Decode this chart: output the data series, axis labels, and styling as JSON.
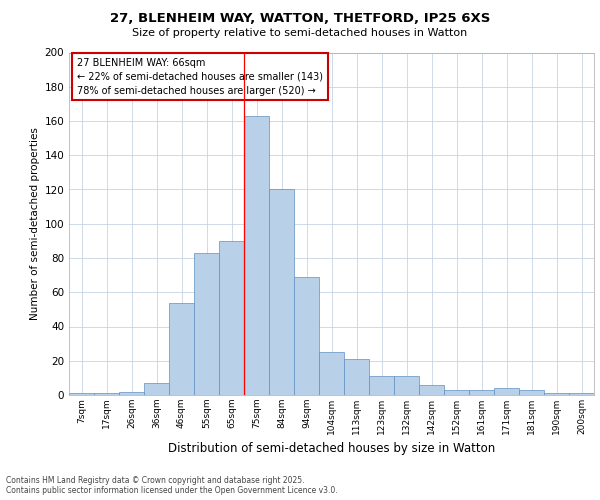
{
  "title1": "27, BLENHEIM WAY, WATTON, THETFORD, IP25 6XS",
  "title2": "Size of property relative to semi-detached houses in Watton",
  "xlabel": "Distribution of semi-detached houses by size in Watton",
  "ylabel": "Number of semi-detached properties",
  "bar_labels": [
    "7sqm",
    "17sqm",
    "26sqm",
    "36sqm",
    "46sqm",
    "55sqm",
    "65sqm",
    "75sqm",
    "84sqm",
    "94sqm",
    "104sqm",
    "113sqm",
    "123sqm",
    "132sqm",
    "142sqm",
    "152sqm",
    "161sqm",
    "171sqm",
    "181sqm",
    "190sqm",
    "200sqm"
  ],
  "bar_values": [
    1,
    1,
    2,
    7,
    54,
    83,
    90,
    163,
    120,
    69,
    25,
    21,
    11,
    11,
    6,
    3,
    3,
    4,
    3,
    1,
    1
  ],
  "bar_color": "#b8d0e8",
  "bar_edge_color": "#6090c0",
  "annotation_box_color": "#cc0000",
  "grid_color": "#c8d4e4",
  "background_color": "#ffffff",
  "footer": "Contains HM Land Registry data © Crown copyright and database right 2025.\nContains public sector information licensed under the Open Government Licence v3.0.",
  "ylim": [
    0,
    200
  ],
  "yticks": [
    0,
    20,
    40,
    60,
    80,
    100,
    120,
    140,
    160,
    180,
    200
  ],
  "pct_smaller": 22,
  "pct_larger": 78,
  "count_smaller": 143,
  "count_larger": 520,
  "property_sqm": "66sqm",
  "property_name": "27 BLENHEIM WAY"
}
